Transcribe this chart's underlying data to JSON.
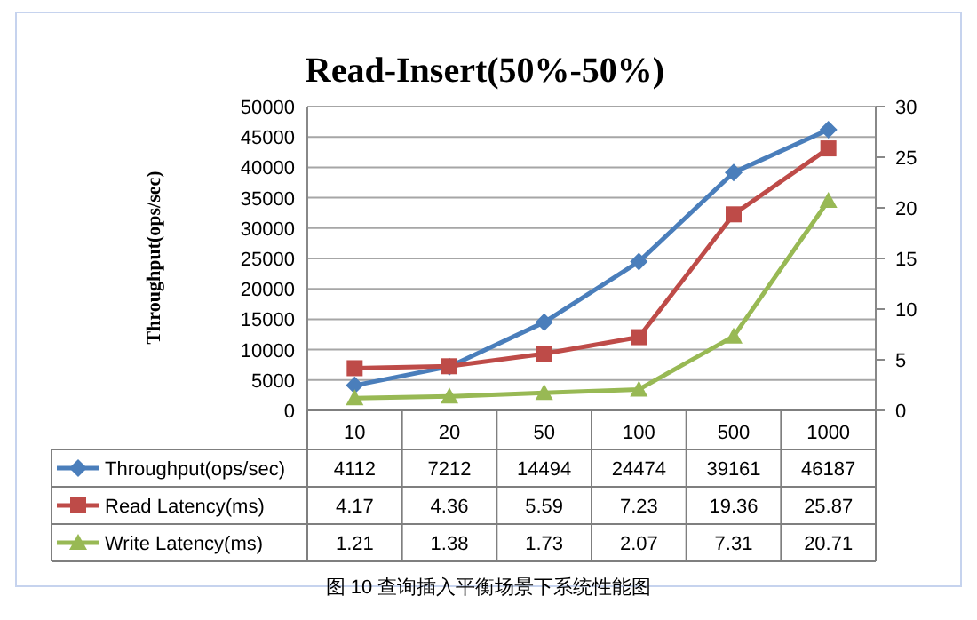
{
  "chart_data": {
    "type": "line",
    "title": "Read-Insert(50%-50%)",
    "ylabel": "Throughput(ops/sec)",
    "categories": [
      "10",
      "20",
      "50",
      "100",
      "500",
      "1000"
    ],
    "series": [
      {
        "name": "Throughput(ops/sec)",
        "color": "#4a7ebb",
        "marker": "diamond",
        "values": [
          4112,
          7212,
          14494,
          24474,
          39161,
          46187
        ]
      },
      {
        "name": "Read Latency(ms)",
        "color": "#be4b48",
        "marker": "square",
        "axis": "y2",
        "values": [
          4.17,
          4.36,
          5.59,
          7.23,
          19.36,
          25.87
        ]
      },
      {
        "name": "Write Latency(ms)",
        "color": "#98b954",
        "marker": "triangle",
        "axis": "y2",
        "values": [
          1.21,
          1.38,
          1.73,
          2.07,
          7.31,
          20.71
        ]
      }
    ],
    "ylim": [
      0,
      50000
    ],
    "yticks": [
      0,
      5000,
      10000,
      15000,
      20000,
      25000,
      30000,
      35000,
      40000,
      45000,
      50000
    ],
    "y2lim": [
      0,
      30
    ],
    "y2ticks": [
      0,
      5,
      10,
      15,
      20,
      25,
      30
    ],
    "grid": "y",
    "legend": "bottom left",
    "data_labels": true,
    "annotations": [
      "图 10 查询插入平衡场景下系统性能图"
    ]
  }
}
